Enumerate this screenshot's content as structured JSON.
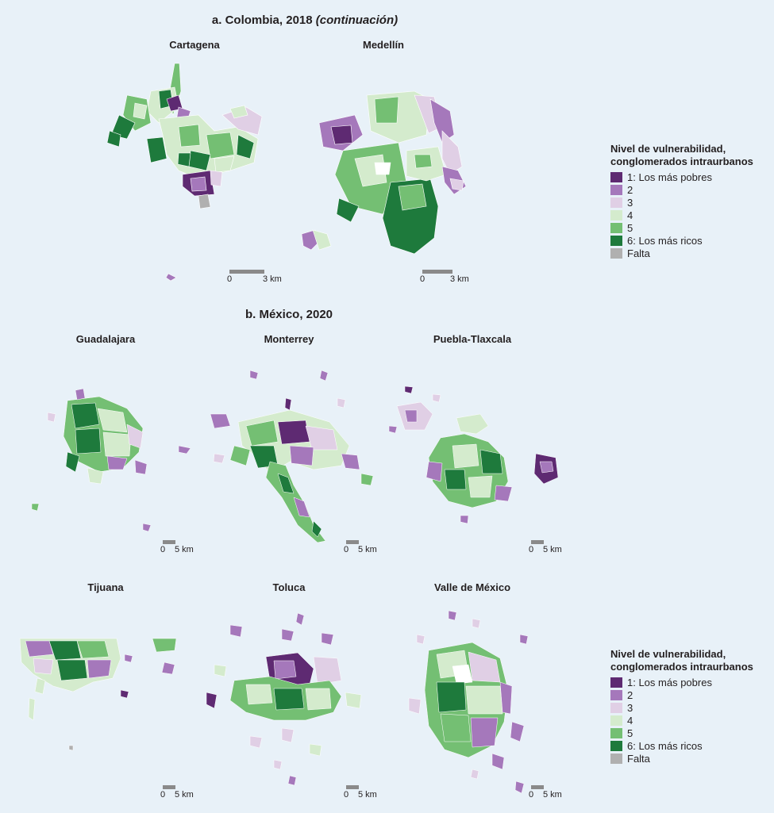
{
  "section_a": {
    "title_main": "a. Colombia, 2018",
    "title_suffix": "(continuación)",
    "maps": [
      {
        "name": "Cartagena",
        "scale_zero": "0",
        "scale_label": "3 km"
      },
      {
        "name": "Medellín",
        "scale_zero": "0",
        "scale_label": "3 km"
      }
    ]
  },
  "section_b": {
    "title": "b. México, 2020",
    "maps": [
      {
        "name": "Guadalajara",
        "scale_zero": "0",
        "scale_label": "5 km"
      },
      {
        "name": "Monterrey",
        "scale_zero": "0",
        "scale_label": "5 km"
      },
      {
        "name": "Puebla-Tlaxcala",
        "scale_zero": "0",
        "scale_label": "5 km"
      },
      {
        "name": "Tijuana",
        "scale_zero": "0",
        "scale_label": "5 km"
      },
      {
        "name": "Toluca",
        "scale_zero": "0",
        "scale_label": "5 km"
      },
      {
        "name": "Valle de México",
        "scale_zero": "0",
        "scale_label": "5 km"
      }
    ]
  },
  "legend": {
    "title_line1": "Nivel de vulnerabilidad,",
    "title_line2": "conglomerados intraurbanos",
    "items": [
      {
        "label": "1: Los más pobres",
        "color": "#5e2a72"
      },
      {
        "label": "2",
        "color": "#a578bb"
      },
      {
        "label": "3",
        "color": "#e0cfe5"
      },
      {
        "label": "4",
        "color": "#d4ebcd"
      },
      {
        "label": "5",
        "color": "#74bf73"
      },
      {
        "label": "6: Los más ricos",
        "color": "#1e7a3c"
      },
      {
        "label": "Falta",
        "color": "#b0b0b0"
      }
    ]
  }
}
